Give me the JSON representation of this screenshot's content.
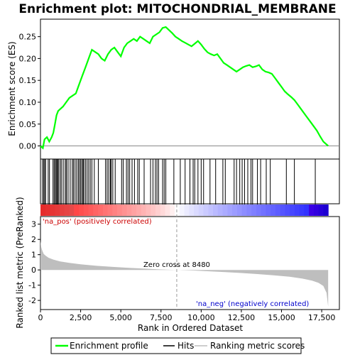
{
  "chart_data": {
    "type": "line",
    "title": "Enrichment plot: MITOCHONDRIAL_MEMBRANE",
    "xlabel": "Rank in Ordered Dataset",
    "top_panel": {
      "ylabel": "Enrichment score (ES)",
      "ylim": [
        -0.03,
        0.29
      ],
      "yticks": [
        0.0,
        0.05,
        0.1,
        0.15,
        0.2,
        0.25
      ],
      "ytick_labels": [
        "0.00",
        "0.05",
        "0.10",
        "0.15",
        "0.20",
        "0.25"
      ],
      "series": [
        {
          "name": "Enrichment profile",
          "color": "#00ff00",
          "x": [
            0,
            150,
            250,
            400,
            550,
            700,
            800,
            900,
            1000,
            1100,
            1250,
            1400,
            1600,
            1800,
            2000,
            2200,
            2400,
            2600,
            2800,
            3000,
            3200,
            3400,
            3600,
            3800,
            4000,
            4200,
            4400,
            4600,
            4800,
            5000,
            5200,
            5400,
            5600,
            5800,
            6000,
            6200,
            6400,
            6600,
            6800,
            7000,
            7200,
            7400,
            7600,
            7800,
            8000,
            8200,
            8400,
            8600,
            8800,
            9000,
            9200,
            9400,
            9600,
            9800,
            10000,
            10200,
            10400,
            10600,
            10800,
            11000,
            11200,
            11400,
            11600,
            11800,
            12000,
            12200,
            12400,
            12600,
            12800,
            13000,
            13200,
            13400,
            13600,
            13800,
            14000,
            14200,
            14400,
            14600,
            14800,
            15000,
            15200,
            15400,
            15600,
            15800,
            16000,
            16200,
            16400,
            16600,
            16800,
            17000,
            17200,
            17400,
            17600,
            17900
          ],
          "values": [
            0.0,
            -0.005,
            0.015,
            0.02,
            0.01,
            0.02,
            0.03,
            0.05,
            0.07,
            0.08,
            0.085,
            0.09,
            0.1,
            0.11,
            0.115,
            0.12,
            0.14,
            0.16,
            0.18,
            0.2,
            0.22,
            0.215,
            0.21,
            0.2,
            0.195,
            0.21,
            0.22,
            0.225,
            0.215,
            0.205,
            0.225,
            0.235,
            0.24,
            0.245,
            0.24,
            0.25,
            0.245,
            0.24,
            0.235,
            0.25,
            0.255,
            0.26,
            0.27,
            0.272,
            0.265,
            0.258,
            0.25,
            0.245,
            0.24,
            0.236,
            0.232,
            0.228,
            0.234,
            0.24,
            0.232,
            0.222,
            0.214,
            0.21,
            0.207,
            0.21,
            0.2,
            0.19,
            0.185,
            0.18,
            0.175,
            0.17,
            0.175,
            0.18,
            0.183,
            0.185,
            0.18,
            0.182,
            0.185,
            0.175,
            0.17,
            0.168,
            0.165,
            0.155,
            0.145,
            0.135,
            0.125,
            0.118,
            0.112,
            0.105,
            0.095,
            0.085,
            0.075,
            0.065,
            0.055,
            0.045,
            0.035,
            0.022,
            0.01,
            0.0
          ]
        }
      ]
    },
    "hits": [
      120,
      200,
      260,
      320,
      480,
      560,
      780,
      850,
      920,
      980,
      1030,
      1090,
      1150,
      1250,
      1330,
      1450,
      1560,
      1620,
      1720,
      1850,
      1980,
      2050,
      2150,
      2250,
      2350,
      2420,
      2500,
      2580,
      2650,
      2700,
      2800,
      2900,
      3000,
      3100,
      3200,
      3350,
      3600,
      4050,
      4150,
      4250,
      4350,
      4400,
      4500,
      4650,
      5050,
      5150,
      5350,
      5450,
      5550,
      5700,
      5850,
      6050,
      6150,
      6450,
      6850,
      7000,
      7150,
      7250,
      7350,
      7600,
      7700,
      7800,
      8300,
      8700,
      9000,
      9300,
      9500,
      9600,
      9800,
      10000,
      10150,
      10550,
      10900,
      11350,
      11500,
      12050,
      12200,
      12400,
      12550,
      12700,
      12900,
      13100,
      13200,
      13500,
      13700,
      14050,
      14300,
      15300,
      15800,
      17100
    ],
    "hits_legend": "Hits",
    "bottom_panel": {
      "ylabel": "Ranked list metric (PreRanked)",
      "ylim": [
        -2.6,
        3.5
      ],
      "yticks": [
        -2,
        -1,
        0,
        1,
        2,
        3
      ],
      "ytick_labels": [
        "-2",
        "-1",
        "0",
        "1",
        "2",
        "3"
      ],
      "series": [
        {
          "name": "Ranking metric scores",
          "color": "#bebebe",
          "x": [
            0,
            50,
            100,
            200,
            300,
            500,
            800,
            1200,
            1800,
            2500,
            3500,
            4500,
            5500,
            6500,
            7500,
            8480,
            9500,
            10500,
            11500,
            12500,
            13500,
            14500,
            15500,
            16300,
            16900,
            17300,
            17600,
            17800,
            17900
          ],
          "values": [
            1.9,
            1.5,
            1.3,
            1.05,
            0.95,
            0.8,
            0.68,
            0.56,
            0.46,
            0.37,
            0.27,
            0.2,
            0.14,
            0.08,
            0.03,
            0.0,
            -0.04,
            -0.09,
            -0.14,
            -0.2,
            -0.27,
            -0.35,
            -0.45,
            -0.57,
            -0.7,
            -0.85,
            -1.05,
            -1.5,
            -2.4
          ]
        }
      ]
    },
    "xlim": [
      0,
      18600
    ],
    "xticks": [
      0,
      2500,
      5000,
      7500,
      10000,
      12500,
      15000,
      17500
    ],
    "xtick_labels": [
      "0",
      "2,500",
      "5,000",
      "7,500",
      "10,000",
      "12,500",
      "15,000",
      "17,500"
    ],
    "annotations": {
      "zero_cross": "Zero cross at 8480",
      "zero_cross_x": 8480,
      "pos_label": "'na_pos' (positively correlated)",
      "neg_label": "'na_neg' (negatively correlated)"
    },
    "colors": {
      "profile": "#00ff00",
      "hits": "#000000",
      "pos": "#cc0000",
      "neg": "#0000cc",
      "metric": "#bebebe"
    },
    "legend": {
      "placement": "bottom",
      "items": [
        "Enrichment profile",
        "Hits",
        "Ranking metric scores"
      ]
    }
  }
}
